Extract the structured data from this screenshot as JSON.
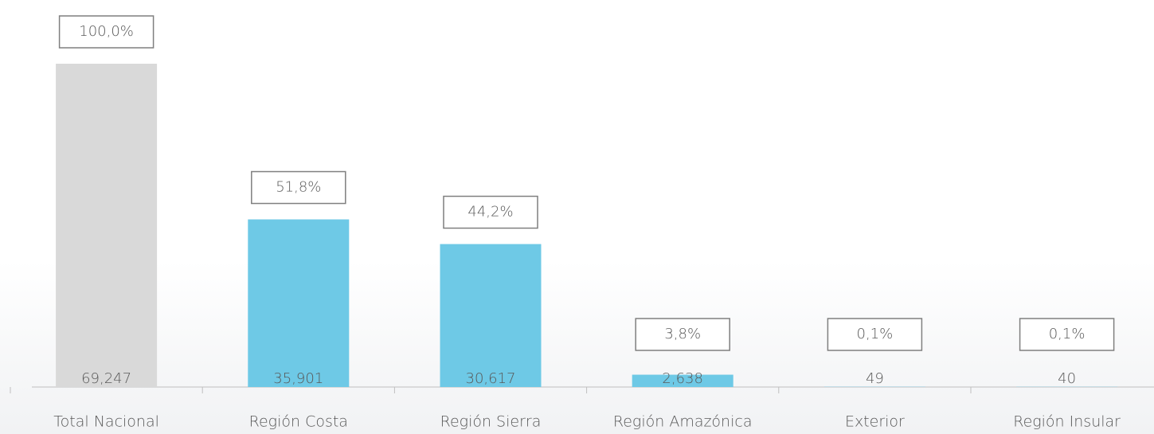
{
  "chart_data": {
    "type": "bar",
    "categories": [
      "Total Nacional",
      "Región Costa",
      "Región Sierra",
      "Región Amazónica",
      "Exterior",
      "Región Insular"
    ],
    "values": [
      69247,
      35901,
      30617,
      2638,
      49,
      40
    ],
    "value_labels": [
      "69,247",
      "35,901",
      "30,617",
      "2,638",
      "49",
      "40"
    ],
    "colors": [
      "#d9d9d9",
      "#6ec9e6",
      "#6ec9e6",
      "#6ec9e6",
      "#6ec9e6",
      "#6ec9e6"
    ],
    "shares": {
      "values": [
        100.0,
        51.8,
        44.2,
        3.8,
        0.1,
        0.1
      ],
      "value_labels": [
        "100,0%",
        "51,8%",
        "44,2%",
        "3,8%",
        "0,1%",
        "0,1%"
      ]
    }
  }
}
